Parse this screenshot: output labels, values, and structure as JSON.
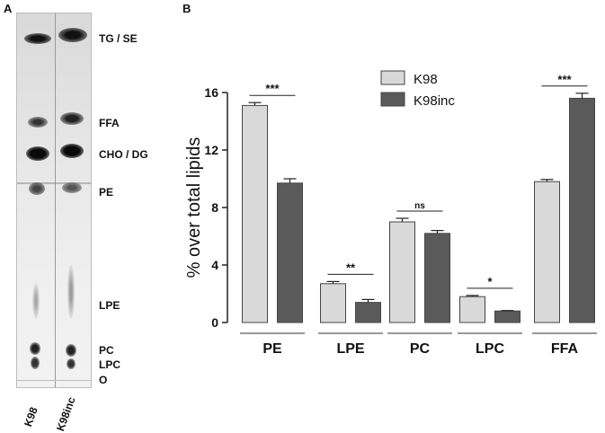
{
  "panel_a": {
    "letter": "A",
    "band_labels": [
      "TG / SE",
      "FFA",
      "CHO / DG",
      "PE",
      "LPE",
      "PC",
      "LPC",
      "O"
    ],
    "lane_labels": [
      "K98",
      "K98inc"
    ]
  },
  "panel_b": {
    "letter": "B"
  },
  "chart_data": {
    "type": "bar",
    "categories": [
      "PE",
      "LPE",
      "PC",
      "LPC",
      "FFA"
    ],
    "series": [
      {
        "name": "K98",
        "values": [
          15.1,
          2.7,
          7.0,
          1.8,
          9.8
        ],
        "errors": [
          0.2,
          0.15,
          0.25,
          0.08,
          0.15
        ],
        "color": "#d9d9d9"
      },
      {
        "name": "K98inc",
        "values": [
          9.7,
          1.4,
          6.2,
          0.8,
          15.6
        ],
        "errors": [
          0.3,
          0.2,
          0.2,
          0.03,
          0.35
        ],
        "color": "#5a5a5a"
      }
    ],
    "significance": [
      "***",
      "**",
      "ns",
      "*",
      "***"
    ],
    "ylabel": "% over total lipids",
    "xlabel": "",
    "ylim": [
      0,
      16
    ],
    "yticks": [
      0,
      4,
      8,
      12,
      16
    ],
    "legend_position": "top-center",
    "grid": false
  }
}
